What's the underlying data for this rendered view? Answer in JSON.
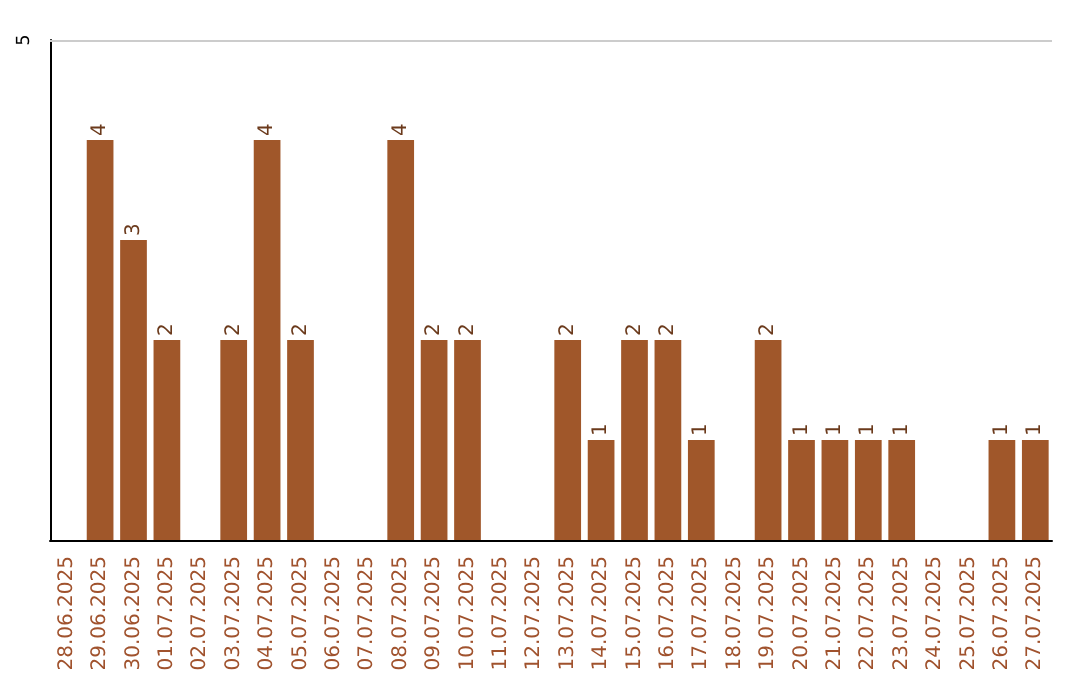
{
  "chart_data": {
    "type": "bar",
    "categories": [
      "28.06.2025",
      "29.06.2025",
      "30.06.2025",
      "01.07.2025",
      "02.07.2025",
      "03.07.2025",
      "04.07.2025",
      "05.07.2025",
      "06.07.2025",
      "07.07.2025",
      "08.07.2025",
      "09.07.2025",
      "10.07.2025",
      "11.07.2025",
      "12.07.2025",
      "13.07.2025",
      "14.07.2025",
      "15.07.2025",
      "16.07.2025",
      "17.07.2025",
      "18.07.2025",
      "19.07.2025",
      "20.07.2025",
      "21.07.2025",
      "22.07.2025",
      "23.07.2025",
      "24.07.2025",
      "25.07.2025",
      "26.07.2025",
      "27.07.2025"
    ],
    "values": [
      0,
      4,
      3,
      2,
      0,
      2,
      4,
      2,
      0,
      0,
      4,
      2,
      2,
      0,
      0,
      2,
      1,
      2,
      2,
      1,
      0,
      2,
      1,
      1,
      1,
      1,
      0,
      0,
      1,
      1
    ],
    "value_labels": [
      null,
      "4",
      "3",
      "2",
      null,
      "2",
      "4",
      "2",
      null,
      null,
      "4",
      "2",
      "2",
      null,
      null,
      "2",
      "1",
      "2",
      "2",
      "1",
      null,
      "2",
      "1",
      "1",
      "1",
      "1",
      null,
      null,
      "1",
      "1"
    ],
    "color": "#a0572a",
    "ylim": [
      0,
      5
    ],
    "yticks": [
      5
    ],
    "ref_lines": [
      {
        "axis": "y",
        "value": 5,
        "color": "#cccccc"
      }
    ]
  }
}
